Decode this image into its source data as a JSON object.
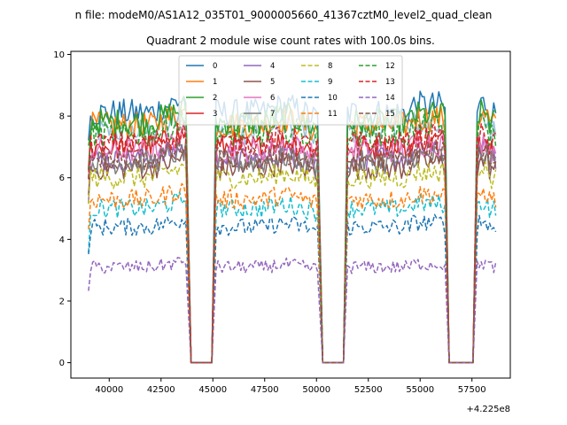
{
  "suptitle": "n file: modeM0/AS1A12_035T01_9000005660_41367cztM0_level2_quad_clean",
  "chart_data": {
    "type": "line",
    "title": "Quadrant 2 module wise count rates with 100.0s bins.",
    "xlabel": "",
    "ylabel": "",
    "x_offset_label": "+4.225e8",
    "xlim": [
      38150,
      59350
    ],
    "ylim": [
      -0.5,
      10.1
    ],
    "x_ticks": [
      40000,
      42500,
      45000,
      47500,
      50000,
      52500,
      55000,
      57500
    ],
    "x_tick_labels": [
      "40000",
      "42500",
      "45000",
      "47500",
      "50000",
      "52500",
      "55000",
      "57500"
    ],
    "y_ticks": [
      0,
      2,
      4,
      6,
      8,
      10
    ],
    "y_tick_labels": [
      "0",
      "2",
      "4",
      "6",
      "8",
      "10"
    ],
    "grid": false,
    "legend_position": "top-center",
    "legend_columns": 4,
    "segments": [
      [
        39000,
        43750
      ],
      [
        45150,
        50100
      ],
      [
        51500,
        56200
      ],
      [
        57750,
        58700
      ]
    ],
    "gaps": [
      [
        43950,
        44950
      ],
      [
        50300,
        51300
      ],
      [
        56400,
        57550
      ]
    ],
    "series": [
      {
        "name": "0",
        "color": "#1f77b4",
        "dash": "solid",
        "level": 8.1
      },
      {
        "name": "1",
        "color": "#ff7f0e",
        "dash": "solid",
        "level": 7.7
      },
      {
        "name": "2",
        "color": "#2ca02c",
        "dash": "solid",
        "level": 7.8
      },
      {
        "name": "3",
        "color": "#d62728",
        "dash": "solid",
        "level": 7.0
      },
      {
        "name": "4",
        "color": "#9467bd",
        "dash": "solid",
        "level": 6.6
      },
      {
        "name": "5",
        "color": "#8c564b",
        "dash": "solid",
        "level": 6.3
      },
      {
        "name": "6",
        "color": "#e377c2",
        "dash": "solid",
        "level": 6.9
      },
      {
        "name": "7",
        "color": "#7f7f7f",
        "dash": "solid",
        "level": 6.5
      },
      {
        "name": "8",
        "color": "#bcbd22",
        "dash": "dashed",
        "level": 6.0
      },
      {
        "name": "9",
        "color": "#17becf",
        "dash": "dashed",
        "level": 5.0
      },
      {
        "name": "10",
        "color": "#1f77b4",
        "dash": "dashed",
        "level": 4.4
      },
      {
        "name": "11",
        "color": "#ff7f0e",
        "dash": "dashed",
        "level": 5.3
      },
      {
        "name": "12",
        "color": "#2ca02c",
        "dash": "dashed",
        "level": 7.4
      },
      {
        "name": "13",
        "color": "#d62728",
        "dash": "dashed",
        "level": 7.1
      },
      {
        "name": "14",
        "color": "#9467bd",
        "dash": "dashed",
        "level": 3.1
      },
      {
        "name": "15",
        "color": "#8c564b",
        "dash": "dashed",
        "level": 6.6
      }
    ],
    "extra_lines": [
      {
        "color": "#1f77b4",
        "dash": "solid",
        "level": 7.5,
        "opacity": 0.45
      }
    ]
  }
}
